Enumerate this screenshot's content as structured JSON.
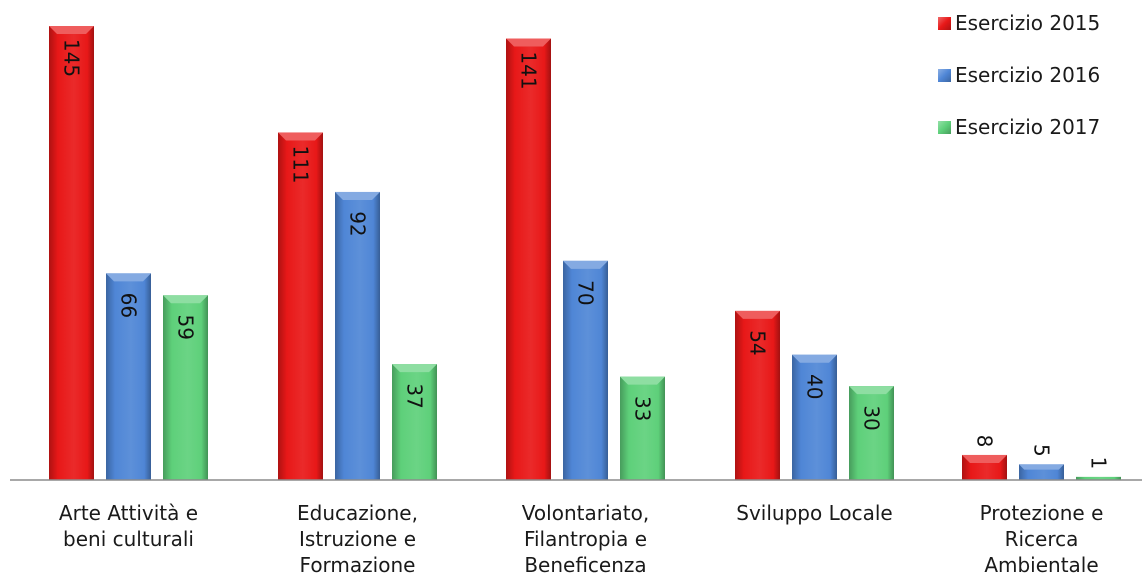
{
  "chart_data": {
    "type": "bar",
    "categories": [
      [
        "Arte Attività e",
        "beni culturali"
      ],
      [
        "Educazione,",
        "Istruzione e",
        "Formazione"
      ],
      [
        "Volontariato,",
        "Filantropia e",
        "Beneficenza"
      ],
      [
        "Sviluppo Locale"
      ],
      [
        "Protezione e",
        "Ricerca",
        "Ambientale"
      ]
    ],
    "series": [
      {
        "name": "Esercizio 2015",
        "values": [
          145,
          111,
          141,
          54,
          8
        ],
        "color": "#e81818"
      },
      {
        "name": "Esercizio 2016",
        "values": [
          66,
          92,
          70,
          40,
          5
        ],
        "color": "#4f86d6"
      },
      {
        "name": "Esercizio 2017",
        "values": [
          59,
          37,
          33,
          30,
          1
        ],
        "color": "#5ed07a"
      }
    ],
    "ylim": [
      0,
      145
    ],
    "legend_position": "top-right",
    "grid": false
  }
}
